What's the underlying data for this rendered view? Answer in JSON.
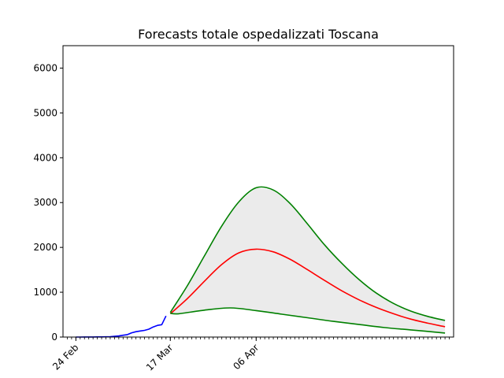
{
  "chart_data": {
    "type": "line",
    "title": "Forecasts totale ospedalizzati Toscana",
    "xlabel": "",
    "ylabel": "",
    "x_axis": {
      "type": "date",
      "range": [
        "2020-02-21",
        "2020-05-22"
      ],
      "tick_labels": [
        {
          "date": "2020-02-24",
          "label": "24 Feb"
        },
        {
          "date": "2020-03-17",
          "label": "17 Mar"
        },
        {
          "date": "2020-04-06",
          "label": "06 Apr"
        }
      ],
      "minor_ticks": "daily"
    },
    "ylim": [
      0,
      6500
    ],
    "y_ticks": [
      0,
      1000,
      2000,
      3000,
      4000,
      5000,
      6000
    ],
    "grid": false,
    "legend": "none",
    "series": [
      {
        "color": "#0000ff",
        "x": [
          "2020-02-24",
          "2020-02-25",
          "2020-02-26",
          "2020-02-27",
          "2020-02-28",
          "2020-02-29",
          "2020-03-01",
          "2020-03-02",
          "2020-03-03",
          "2020-03-04",
          "2020-03-05",
          "2020-03-06",
          "2020-03-07",
          "2020-03-08",
          "2020-03-09",
          "2020-03-10",
          "2020-03-11",
          "2020-03-12",
          "2020-03-13",
          "2020-03-14",
          "2020-03-15",
          "2020-03-16"
        ],
        "y": [
          0,
          0,
          1,
          2,
          2,
          3,
          4,
          5,
          8,
          15,
          25,
          40,
          55,
          95,
          120,
          135,
          150,
          175,
          225,
          260,
          275,
          470
        ]
      },
      {
        "color": "#ff0000",
        "x": [
          "2020-03-17",
          "2020-03-21",
          "2020-03-25",
          "2020-03-29",
          "2020-04-02",
          "2020-04-06",
          "2020-04-10",
          "2020-04-14",
          "2020-04-18",
          "2020-04-22",
          "2020-04-26",
          "2020-04-30",
          "2020-05-04",
          "2020-05-08",
          "2020-05-12",
          "2020-05-16",
          "2020-05-20"
        ],
        "y": [
          520,
          860,
          1250,
          1620,
          1880,
          1960,
          1900,
          1730,
          1500,
          1260,
          1030,
          830,
          660,
          520,
          400,
          310,
          230
        ]
      },
      {
        "color": "#008000",
        "x": [
          "2020-03-17",
          "2020-03-21",
          "2020-03-25",
          "2020-03-29",
          "2020-04-02",
          "2020-04-06",
          "2020-04-10",
          "2020-04-14",
          "2020-04-18",
          "2020-04-22",
          "2020-04-26",
          "2020-04-30",
          "2020-05-04",
          "2020-05-08",
          "2020-05-12",
          "2020-05-16",
          "2020-05-20"
        ],
        "y": [
          550,
          1150,
          1820,
          2480,
          3020,
          3330,
          3280,
          2970,
          2520,
          2050,
          1640,
          1280,
          980,
          750,
          580,
          460,
          370
        ]
      },
      {
        "color": "#008000",
        "x": [
          "2020-03-17",
          "2020-03-19",
          "2020-03-25",
          "2020-03-31",
          "2020-04-06",
          "2020-04-12",
          "2020-04-18",
          "2020-04-24",
          "2020-04-30",
          "2020-05-06",
          "2020-05-12",
          "2020-05-20"
        ],
        "y": [
          530,
          520,
          600,
          650,
          590,
          510,
          430,
          350,
          280,
          210,
          160,
          90
        ]
      }
    ],
    "fill_between": {
      "color": "#ebebeb",
      "upper_series": 2,
      "lower_series": 3
    }
  }
}
